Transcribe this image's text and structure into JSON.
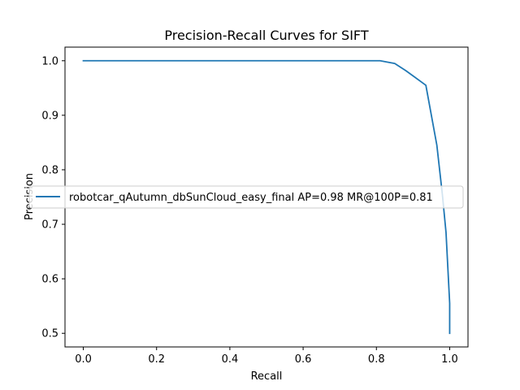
{
  "chart_data": {
    "type": "line",
    "title": "Precision-Recall Curves for SIFT",
    "xlabel": "Recall",
    "ylabel": "Precision",
    "xlim": [
      -0.05,
      1.05
    ],
    "ylim": [
      0.475,
      1.025
    ],
    "xticks": [
      0.0,
      0.2,
      0.4,
      0.6,
      0.8,
      1.0
    ],
    "xtick_labels": [
      "0.0",
      "0.2",
      "0.4",
      "0.6",
      "0.8",
      "1.0"
    ],
    "yticks": [
      0.5,
      0.6,
      0.7,
      0.8,
      0.9,
      1.0
    ],
    "ytick_labels": [
      "0.5",
      "0.6",
      "0.7",
      "0.8",
      "0.9",
      "1.0"
    ],
    "grid": false,
    "legend_position": "center-right",
    "series": [
      {
        "name": "robotcar_qAutumn_dbSunCloud_easy_final AP=0.98 MR@100P=0.81",
        "color": "#1f77b4",
        "x": [
          0.0,
          0.81,
          0.85,
          0.88,
          0.935,
          0.965,
          0.98,
          0.99,
          0.995,
          1.0,
          1.0
        ],
        "y": [
          1.0,
          1.0,
          0.995,
          0.982,
          0.955,
          0.845,
          0.755,
          0.685,
          0.62,
          0.555,
          0.5
        ]
      }
    ]
  }
}
